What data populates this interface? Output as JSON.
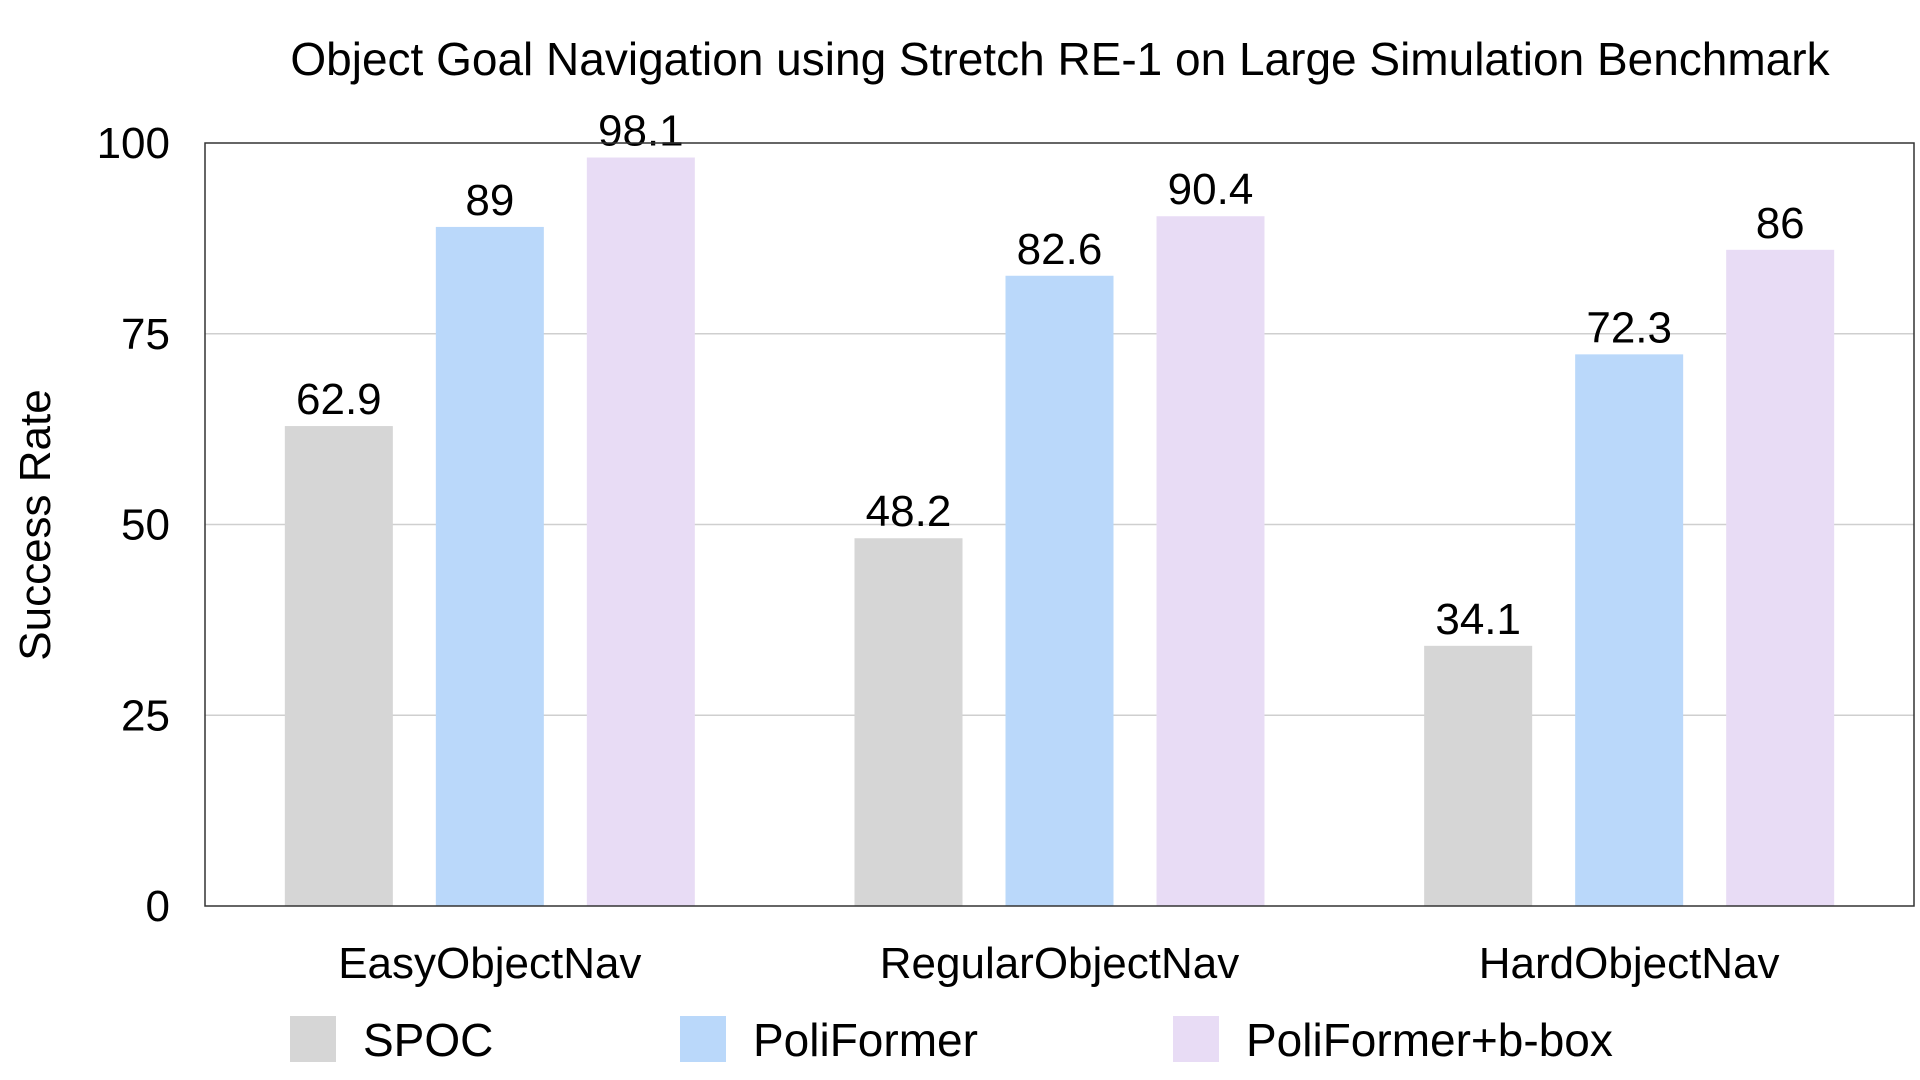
{
  "chart_data": {
    "type": "bar",
    "title": "Object Goal Navigation using Stretch RE-1 on Large Simulation Benchmark",
    "xlabel": "",
    "ylabel": "Success Rate",
    "ylim": [
      0,
      100
    ],
    "yticks": [
      0,
      25,
      50,
      75,
      100
    ],
    "grid": true,
    "legend_position": "bottom",
    "categories": [
      "EasyObjectNav",
      "RegularObjectNav",
      "HardObjectNav"
    ],
    "series": [
      {
        "name": "SPOC",
        "color": "#d6d6d6",
        "values": [
          62.9,
          48.2,
          34.1
        ]
      },
      {
        "name": "PoliFormer",
        "color": "#bad8fa",
        "values": [
          89,
          82.6,
          72.3
        ]
      },
      {
        "name": "PoliFormer+b-box",
        "color": "#e8dcf5",
        "values": [
          98.1,
          90.4,
          86
        ]
      }
    ]
  }
}
